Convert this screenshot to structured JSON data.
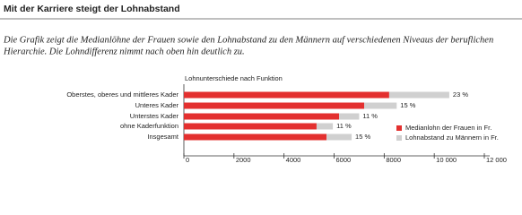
{
  "title": "Mit der Karriere steigt der Lohnabstand",
  "intro": [
    "Die Grafik zeigt die Medianlöhne der Frauen sowie den Lohnabstand zu den Männern auf verschiedenen Niveaus der beruflichen",
    "Hierarchie. Die Lohndifferenz nimmt nach oben hin deutlich zu."
  ],
  "chart_data": {
    "type": "stacked-barh",
    "title": "Lohnunterschiede nach Funktion",
    "categories": [
      "Oberstes, oberes und mittleres Kader",
      "Unteres Kader",
      "Unterstes Kader",
      "ohne Kaderfunktion",
      "Insgesamt"
    ],
    "series": [
      {
        "name": "Medianlohn der Frauen in Fr.",
        "color": "#e3302f",
        "values": [
          8200,
          7200,
          6200,
          5300,
          5700
        ]
      },
      {
        "name": "Lohnabstand zu Männern in Fr.",
        "color": "#d0d0d0",
        "values": [
          2400,
          1300,
          800,
          650,
          1000
        ]
      }
    ],
    "gap_percent_labels": [
      "23 %",
      "15 %",
      "11 %",
      "11 %",
      "15 %"
    ],
    "xlim": [
      0,
      12000
    ],
    "xticks": [
      0,
      2000,
      4000,
      6000,
      8000,
      {
        "value": 10000,
        "label": "10 000"
      },
      {
        "value": 12000,
        "label": "12 000"
      }
    ]
  }
}
